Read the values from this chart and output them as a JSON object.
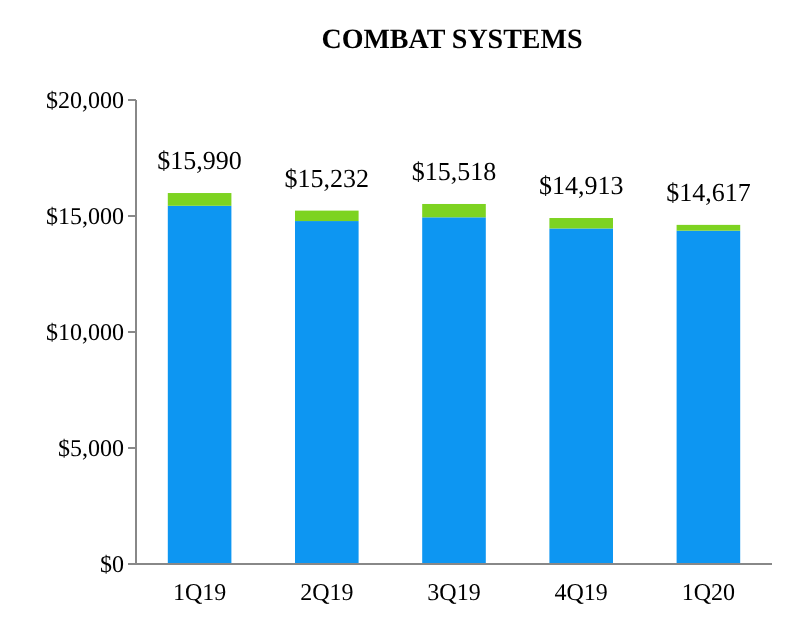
{
  "chart_data": {
    "type": "bar",
    "title": "COMBAT SYSTEMS",
    "categories": [
      "1Q19",
      "2Q19",
      "3Q19",
      "4Q19",
      "1Q20"
    ],
    "stacked": true,
    "series": [
      {
        "color": "#0d96f2",
        "values": [
          15440,
          14782,
          14943,
          14463,
          14367
        ]
      },
      {
        "color": "#7dd321",
        "values": [
          550,
          450,
          575,
          450,
          250
        ]
      }
    ],
    "totals": [
      "$15,990",
      "$15,232",
      "$15,518",
      "$14,913",
      "$14,617"
    ],
    "ylim": [
      0,
      20000
    ],
    "yticks": [
      {
        "value": 0,
        "label": "$0"
      },
      {
        "value": 5000,
        "label": "$5,000"
      },
      {
        "value": 10000,
        "label": "$10,000"
      },
      {
        "value": 15000,
        "label": "$15,000"
      },
      {
        "value": 20000,
        "label": "$20,000"
      }
    ],
    "grid": false
  }
}
